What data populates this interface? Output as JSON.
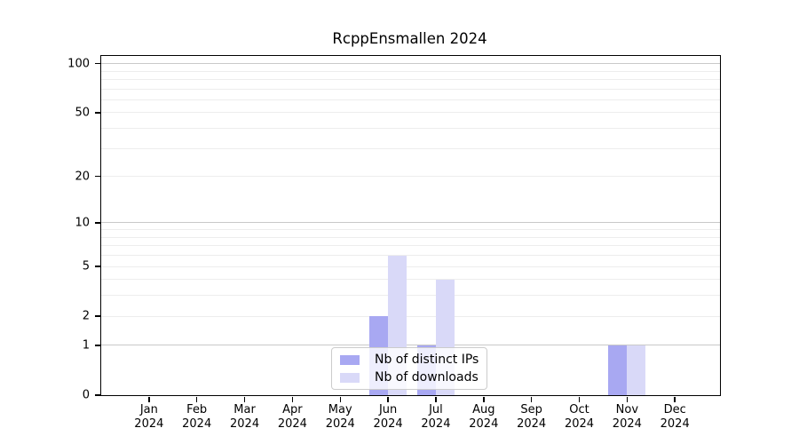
{
  "chart_data": {
    "type": "bar",
    "title": "RcppEnsmallen 2024",
    "categories": [
      "Jan",
      "Feb",
      "Mar",
      "Apr",
      "May",
      "Jun",
      "Jul",
      "Aug",
      "Sep",
      "Oct",
      "Nov",
      "Dec"
    ],
    "x_year_label": "2024",
    "series": [
      {
        "name": "Nb of distinct IPs",
        "color": "#a8a8f2",
        "values": [
          0,
          0,
          0,
          0,
          0,
          2,
          1,
          0,
          0,
          0,
          1,
          0
        ]
      },
      {
        "name": "Nb of downloads",
        "color": "#d9d9f8",
        "values": [
          0,
          0,
          0,
          0,
          0,
          6,
          4,
          0,
          0,
          0,
          1,
          0
        ]
      }
    ],
    "y_axis": {
      "scale": "log10(1+x)",
      "tick_values": [
        0,
        1,
        2,
        5,
        10,
        20,
        50,
        100
      ],
      "tick_labels": [
        "0",
        "1",
        "2",
        "5",
        "10",
        "20",
        "50",
        "100"
      ],
      "max": 111
    },
    "gridlines": {
      "major_values": [
        1,
        10,
        100
      ],
      "minor_values": [
        2,
        3,
        4,
        5,
        6,
        7,
        8,
        9,
        20,
        30,
        40,
        50,
        60,
        70,
        80,
        90
      ],
      "major_color": "#c9c9c9",
      "minor_color": "#ededed"
    },
    "legend_position": "bottom-center",
    "colors": {
      "axis": "#000000",
      "background": "#ffffff",
      "legend_border": "#cccccc"
    }
  }
}
